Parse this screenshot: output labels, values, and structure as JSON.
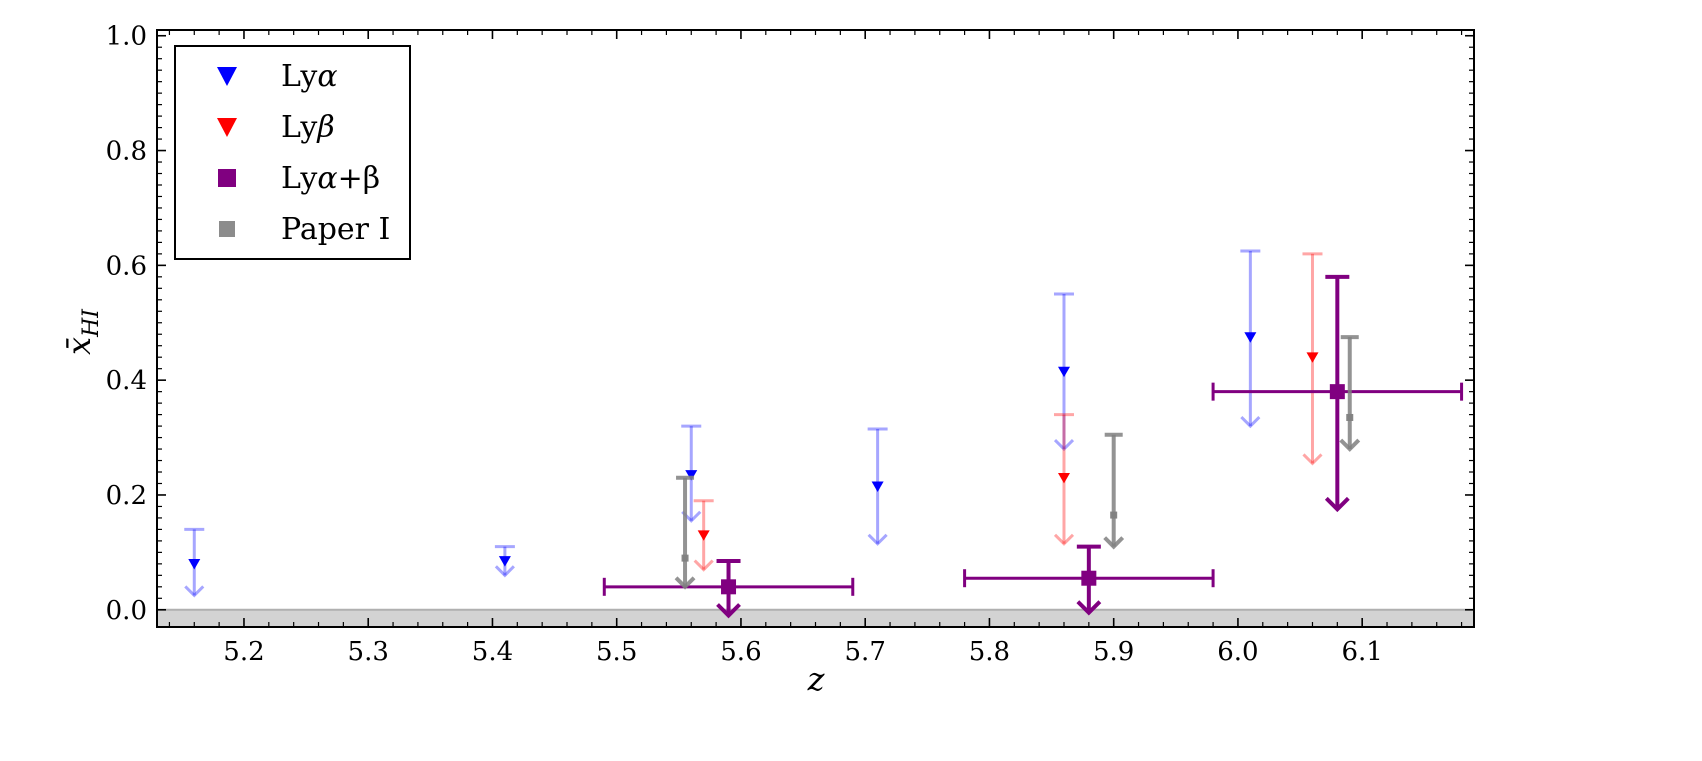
{
  "chart_data": {
    "type": "scatter",
    "xlabel": "z",
    "ylabel_main": "x̄",
    "ylabel_sub": "HI",
    "xlim": [
      5.13,
      6.19
    ],
    "ylim": [
      -0.03,
      1.01
    ],
    "x_ticks": [
      5.2,
      5.3,
      5.4,
      5.5,
      5.6,
      5.7,
      5.8,
      5.9,
      6.0,
      6.1
    ],
    "x_tick_labels": [
      "5.2",
      "5.3",
      "5.4",
      "5.5",
      "5.6",
      "5.7",
      "5.8",
      "5.9",
      "6.0",
      "6.1"
    ],
    "y_ticks": [
      0.0,
      0.2,
      0.4,
      0.6,
      0.8,
      1.0
    ],
    "y_tick_labels": [
      "0.0",
      "0.2",
      "0.4",
      "0.6",
      "0.8",
      "1.0"
    ],
    "shaded_band": [
      -0.03,
      0.0
    ],
    "legend_position": "upper-left",
    "series": [
      {
        "name": "Lyα",
        "legend_main": "Ly",
        "legend_greek": "α",
        "legend_suffix": "",
        "color": "#0000ff",
        "marker": "triangle-down",
        "points": [
          {
            "x": 5.16,
            "y": 0.08,
            "upper": 0.14,
            "arrow_to": 0.025
          },
          {
            "x": 5.41,
            "y": 0.085,
            "upper": 0.11,
            "arrow_to": 0.06
          },
          {
            "x": 5.56,
            "y": 0.235,
            "upper": 0.32,
            "arrow_to": 0.155
          },
          {
            "x": 5.71,
            "y": 0.215,
            "upper": 0.315,
            "arrow_to": 0.115
          },
          {
            "x": 5.86,
            "y": 0.415,
            "upper": 0.55,
            "arrow_to": 0.28
          },
          {
            "x": 6.01,
            "y": 0.475,
            "upper": 0.625,
            "arrow_to": 0.32
          }
        ]
      },
      {
        "name": "Lyβ",
        "legend_main": "Ly",
        "legend_greek": "β",
        "legend_suffix": "",
        "color": "#ff0000",
        "marker": "triangle-down",
        "points": [
          {
            "x": 5.57,
            "y": 0.13,
            "upper": 0.19,
            "arrow_to": 0.07
          },
          {
            "x": 5.86,
            "y": 0.23,
            "upper": 0.34,
            "arrow_to": 0.115
          },
          {
            "x": 6.06,
            "y": 0.44,
            "upper": 0.62,
            "arrow_to": 0.255
          }
        ]
      },
      {
        "name": "Lyα+β",
        "legend_main": "Ly",
        "legend_greek": "α",
        "legend_suffix": "+β",
        "color": "#800080",
        "marker": "square",
        "points": [
          {
            "x": 5.59,
            "y": 0.04,
            "upper": 0.085,
            "arrow_to": -0.01,
            "xerr": [
              5.49,
              5.69
            ]
          },
          {
            "x": 5.88,
            "y": 0.055,
            "upper": 0.11,
            "arrow_to": -0.005,
            "xerr": [
              5.78,
              5.98
            ]
          },
          {
            "x": 6.08,
            "y": 0.38,
            "upper": 0.58,
            "arrow_to": 0.175,
            "xerr": [
              5.98,
              6.18
            ]
          }
        ]
      },
      {
        "name": "Paper I",
        "legend_main": "Paper I",
        "legend_greek": "",
        "legend_suffix": "",
        "color": "#808080",
        "marker": "square-small",
        "points": [
          {
            "x": 5.555,
            "y": 0.09,
            "upper": 0.23,
            "arrow_to": 0.04
          },
          {
            "x": 5.9,
            "y": 0.165,
            "upper": 0.305,
            "arrow_to": 0.11
          },
          {
            "x": 6.09,
            "y": 0.335,
            "upper": 0.475,
            "arrow_to": 0.28
          }
        ]
      }
    ]
  }
}
